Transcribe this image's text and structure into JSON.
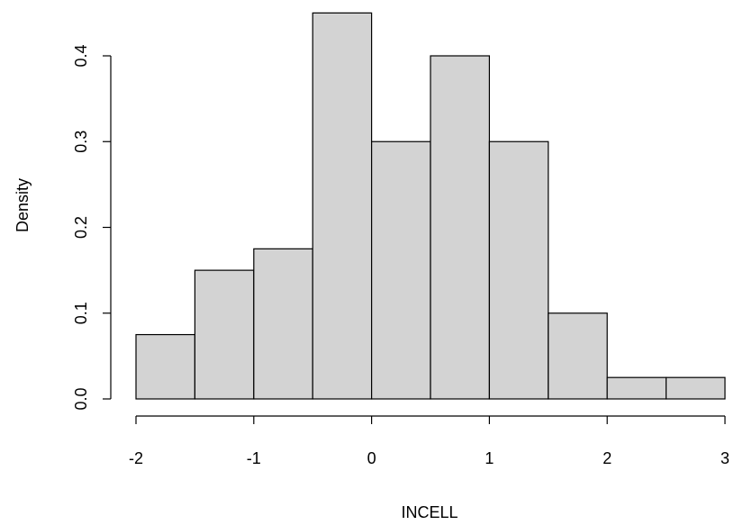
{
  "chart_data": {
    "type": "bar",
    "title": "",
    "xlabel": "INCELL",
    "ylabel": "Density",
    "bins": [
      {
        "start": -2.0,
        "end": -1.5,
        "density": 0.075
      },
      {
        "start": -1.5,
        "end": -1.0,
        "density": 0.15
      },
      {
        "start": -1.0,
        "end": -0.5,
        "density": 0.175
      },
      {
        "start": -0.5,
        "end": 0.0,
        "density": 0.45
      },
      {
        "start": 0.0,
        "end": 0.5,
        "density": 0.3
      },
      {
        "start": 0.5,
        "end": 1.0,
        "density": 0.4
      },
      {
        "start": 1.0,
        "end": 1.5,
        "density": 0.3
      },
      {
        "start": 1.5,
        "end": 2.0,
        "density": 0.1
      },
      {
        "start": 2.0,
        "end": 2.5,
        "density": 0.025
      },
      {
        "start": 2.5,
        "end": 3.0,
        "density": 0.025
      }
    ],
    "xlim": [
      -2,
      3
    ],
    "ylim": [
      0,
      0.45
    ],
    "xticks": [
      -2,
      -1,
      0,
      1,
      2,
      3
    ],
    "xtick_labels": [
      "-2",
      "-1",
      "0",
      "1",
      "2",
      "3"
    ],
    "yticks": [
      0.0,
      0.1,
      0.2,
      0.3,
      0.4
    ],
    "ytick_labels": [
      "0.0",
      "0.1",
      "0.2",
      "0.3",
      "0.4"
    ],
    "bar_fill": "#d3d3d3",
    "bar_stroke": "#000000",
    "grid": false,
    "legend": "none"
  }
}
